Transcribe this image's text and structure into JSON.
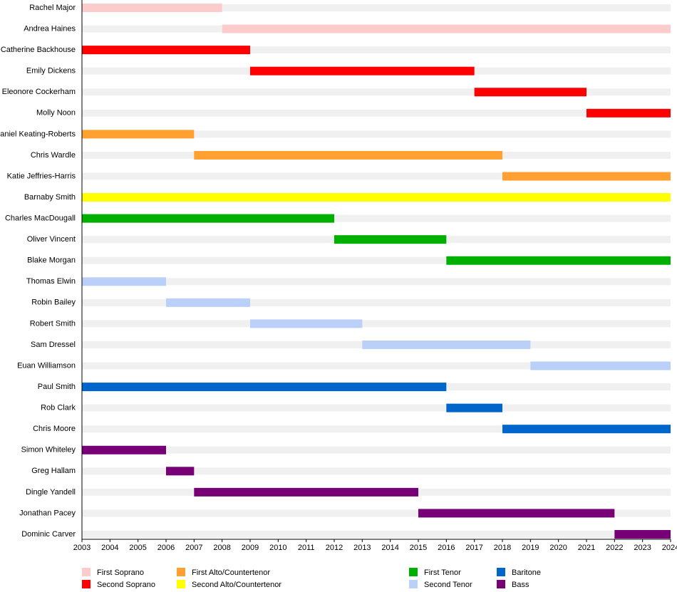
{
  "chart_data": {
    "type": "timeline",
    "xlim": [
      2003,
      2024
    ],
    "xticks": [
      2003,
      2004,
      2005,
      2006,
      2007,
      2008,
      2009,
      2010,
      2011,
      2012,
      2013,
      2014,
      2015,
      2016,
      2017,
      2018,
      2019,
      2020,
      2021,
      2022,
      2023,
      2024
    ],
    "series": [
      {
        "name": "First Soprano",
        "color": "#fccccc",
        "members": [
          "Rachel Major",
          "Andrea Haines"
        ],
        "start": [
          2003,
          2008
        ],
        "end": [
          2008,
          2024
        ]
      },
      {
        "name": "Second Soprano",
        "color": "#ff0000",
        "members": [
          "Catherine Backhouse",
          "Emily Dickens",
          "Eleonore Cockerham",
          "Molly Noon"
        ],
        "start": [
          2003,
          2009,
          2017,
          2021
        ],
        "end": [
          2009,
          2017,
          2021,
          2024
        ]
      },
      {
        "name": "First Alto/Countertenor",
        "color": "#ffa030",
        "members": [
          "Daniel Keating-Roberts",
          "Chris Wardle",
          "Katie Jeffries-Harris"
        ],
        "start": [
          2003,
          2007,
          2018
        ],
        "end": [
          2007,
          2018,
          2024
        ]
      },
      {
        "name": "Second Alto/Countertenor",
        "color": "#ffff00",
        "members": [
          "Barnaby Smith"
        ],
        "start": [
          2003
        ],
        "end": [
          2024
        ]
      },
      {
        "name": "First Tenor",
        "color": "#00b000",
        "members": [
          "Charles MacDougall",
          "Oliver Vincent",
          "Blake Morgan"
        ],
        "start": [
          2003,
          2012,
          2016
        ],
        "end": [
          2012,
          2016,
          2024
        ]
      },
      {
        "name": "Second Tenor",
        "color": "#bbd0f8",
        "members": [
          "Thomas Elwin",
          "Robin Bailey",
          "Robert Smith",
          "Sam Dressel",
          "Euan Williamson"
        ],
        "start": [
          2003,
          2006,
          2009,
          2013,
          2019
        ],
        "end": [
          2006,
          2009,
          2013,
          2019,
          2024
        ]
      },
      {
        "name": "Baritone",
        "color": "#0066cc",
        "members": [
          "Paul Smith",
          "Rob Clark",
          "Chris Moore"
        ],
        "start": [
          2003,
          2016,
          2018
        ],
        "end": [
          2016,
          2018,
          2024
        ]
      },
      {
        "name": "Bass",
        "color": "#770077",
        "members": [
          "Simon Whiteley",
          "Greg Hallam",
          "Dingle Yandell",
          "Jonathan Pacey",
          "Dominic Carver"
        ],
        "start": [
          2003,
          2006,
          2007,
          2015,
          2022
        ],
        "end": [
          2006,
          2007,
          2015,
          2022,
          2024
        ]
      }
    ]
  }
}
